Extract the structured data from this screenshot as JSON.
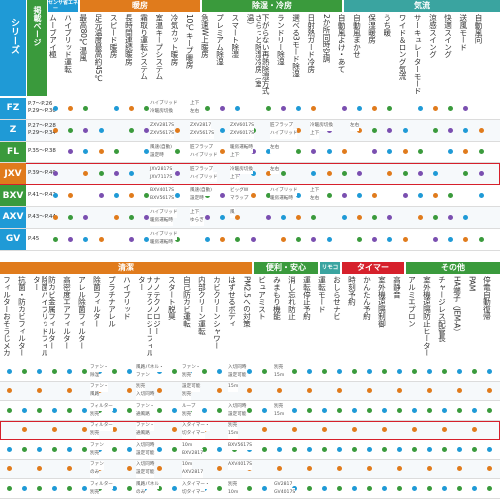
{
  "top": {
    "series_header": "シリーズ",
    "page_header": "掲載ページ",
    "categories": [
      {
        "label": "センサー",
        "color": "#1f9ad6"
      },
      {
        "label": "省エネ",
        "color": "#1f9ad6"
      },
      {
        "label": "暖房",
        "color": "#e07b1c"
      },
      {
        "label": "除湿・冷房",
        "color": "#3a9a3c"
      },
      {
        "label": "気流",
        "color": "#3aa4a0"
      }
    ],
    "columns": [
      "ムーブアイ極",
      "ハイブリッド運転",
      "最高80℃温風",
      "足元温度最高約45℃",
      "スピード暖房",
      "長時間連続暖房",
      "霜取り運転システム",
      "室温キープシステム",
      "冷気カット暖房",
      "10℃キープ暖房",
      "急速W上暖房",
      "プレミアム除湿",
      "スマート除湿",
      "さらっと除湿冷房（室温）",
      "下がらない再熱除湿方式",
      "ランドリー除湿",
      "選べる3モード除湿",
      "日射熱ガード冷房",
      "2か所同時空調",
      "自動風よけ・あて",
      "自動風まかせ",
      "保湿暖房",
      "うち暖",
      "ワイド＆ロング気流",
      "サーキュレーターモード",
      "涼感スイング",
      "快適スイング",
      "送風モード",
      "自動風向"
    ],
    "rows": [
      {
        "name": "FZ",
        "pages": [
          "P.7〜P.26",
          "P.29〜P.30"
        ],
        "color": "#1f9ad6",
        "highlight": false,
        "notes": [
          {
            "text": "ハイブリッド"
          },
          {
            "text": "冷暖房切換"
          },
          {
            "text": "上下"
          },
          {
            "text": "左右"
          }
        ]
      },
      {
        "name": "Z",
        "pages": [
          "P.27〜P.28",
          "P.29〜P.34"
        ],
        "color": "#1f9ad6",
        "highlight": false,
        "notes": [
          {
            "text": "ZXV2817S"
          },
          {
            "text": "ZXV5617S"
          },
          {
            "text": "ZXV2817"
          },
          {
            "text": "ZXV5617S"
          },
          {
            "text": "ZXV6017S"
          },
          {
            "text": "ZXV6017S"
          },
          {
            "text": "匠フラップ"
          },
          {
            "text": "ハイブリッド"
          },
          {
            "text": "冷暖房切換"
          },
          {
            "text": "上下"
          },
          {
            "text": "左右"
          }
        ]
      },
      {
        "name": "FL",
        "pages": [
          "P.35〜P.38"
        ],
        "color": "#3a9a3c",
        "highlight": false,
        "notes": [
          {
            "text": "風速(自動)"
          },
          {
            "text": "設定時"
          },
          {
            "text": "匠フラップ"
          },
          {
            "text": "ハイブリッド"
          },
          {
            "text": "暖房運転時"
          },
          {
            "text": "上下"
          },
          {
            "text": "左右"
          }
        ]
      },
      {
        "name": "JXV",
        "pages": [
          "P.39〜P.40"
        ],
        "color": "#e07b1c",
        "highlight": true,
        "notes": [
          {
            "text": "JXV2817S"
          },
          {
            "text": "JXV7117S"
          },
          {
            "text": "匠フラップ"
          },
          {
            "text": "ハイブリッド"
          },
          {
            "text": "冷暖房切換"
          },
          {
            "text": "上下"
          },
          {
            "text": "左右"
          }
        ]
      },
      {
        "name": "BXV",
        "pages": [
          "P.41〜P.42"
        ],
        "color": "#3a9a3c",
        "highlight": false,
        "notes": [
          {
            "text": "BXV4017S"
          },
          {
            "text": "BXV5617S"
          },
          {
            "text": "風速(自動)"
          },
          {
            "text": "設定時"
          },
          {
            "text": "ビッグW"
          },
          {
            "text": "マラップ"
          },
          {
            "text": "ハイブリッド"
          },
          {
            "text": "暖房運転時"
          },
          {
            "text": "上下"
          },
          {
            "text": "左右"
          }
        ]
      },
      {
        "name": "AXV",
        "pages": [
          "P.43〜P.44"
        ],
        "color": "#1f9ad6",
        "highlight": false,
        "notes": [
          {
            "text": "ハイブリッド"
          },
          {
            "text": "暖房運転時"
          },
          {
            "text": "上下"
          },
          {
            "text": "ゆらぎ"
          },
          {
            "text": "風"
          }
        ]
      },
      {
        "name": "GV",
        "pages": [
          "P.45"
        ],
        "color": "#1f9ad6",
        "highlight": false,
        "notes": [
          {
            "text": "ハイブリッド"
          },
          {
            "text": "暖房運転時"
          }
        ]
      }
    ]
  },
  "bottom": {
    "categories": [
      {
        "label": "清潔",
        "color": "#e07b1c"
      },
      {
        "label": "便利・安心",
        "color": "#3a9a3c"
      },
      {
        "label": "リモコン",
        "color": "#3aa4a0"
      },
      {
        "label": "タイマー",
        "color": "#d6202b"
      },
      {
        "label": "その他",
        "color": "#3a9a3c"
      }
    ],
    "columns": [
      "フィルターおそうじメカ",
      "抗菌・防カビフィルター",
      "除菌ハイブリッドフィルター",
      "防カビ金属フィルター",
      "高密度エアフィルター",
      "アレル除菌フィルター",
      "除菌フィルター",
      "プラチナアレル",
      "ハイブリッド",
      "ナノテクノロジーフィルター",
      "ナノテクノロジー",
      "スタート脱臭",
      "自己防カビ運転",
      "内部クリーン運転",
      "カビクリーンシャワー",
      "はずせるボディ",
      "PM2.5への対策",
      "ピュアミスト",
      "みまもり機能",
      "消し忘れ防止",
      "運転停止予約",
      "運転モード",
      "おしらせナビ",
      "時刻予約",
      "かんたん予約",
      "室外機遠隔制御",
      "高静音",
      "アルミエプロン",
      "室外機遠隔防止ヒーター",
      "チャージレス配管長",
      "HA端子（JEM-A）",
      "PAM",
      "停電自動復帰"
    ],
    "rows": [
      {
        "highlight": false,
        "notes": [
          {
            "text": "ファン・"
          },
          {
            "text": "除湿"
          },
          {
            "text": "風路パネル・"
          },
          {
            "text": "ファン"
          },
          {
            "text": "ファン・"
          },
          {
            "text": "別売"
          },
          {
            "text": "入切同時"
          },
          {
            "text": "設定可能"
          },
          {
            "text": "別売"
          },
          {
            "text": "15m"
          }
        ]
      },
      {
        "highlight": false,
        "notes": [
          {
            "text": "ファン・"
          },
          {
            "text": "風路"
          },
          {
            "text": "別売"
          },
          {
            "text": "入切同時"
          },
          {
            "text": "設定可能"
          },
          {
            "text": "別売"
          },
          {
            "text": "15m"
          }
        ]
      },
      {
        "highlight": false,
        "notes": [
          {
            "text": "フィルター"
          },
          {
            "text": "別売"
          },
          {
            "text": "ファン・"
          },
          {
            "text": "通風路"
          },
          {
            "text": "ルーブ"
          },
          {
            "text": "別売"
          },
          {
            "text": "入切同時"
          },
          {
            "text": "設定可能"
          },
          {
            "text": "別売"
          },
          {
            "text": "15m"
          }
        ]
      },
      {
        "highlight": true,
        "notes": [
          {
            "text": "フィルター"
          },
          {
            "text": "別売"
          },
          {
            "text": "ファン・"
          },
          {
            "text": "通風路"
          },
          {
            "text": "入タイマー・"
          },
          {
            "text": "切タイマー"
          },
          {
            "text": "別売"
          },
          {
            "text": "15m"
          }
        ]
      },
      {
        "highlight": false,
        "notes": [
          {
            "text": "ファン"
          },
          {
            "text": "別売"
          },
          {
            "text": "入切同時"
          },
          {
            "text": "設定可能"
          },
          {
            "text": "10m"
          },
          {
            "text": "BXV2817"
          },
          {
            "text": "BXV5617S"
          }
        ]
      },
      {
        "highlight": false,
        "notes": [
          {
            "text": "ファン"
          },
          {
            "text": "のみ"
          },
          {
            "text": "入切同時"
          },
          {
            "text": "設定可能"
          },
          {
            "text": "10m"
          },
          {
            "text": "AXV2817"
          },
          {
            "text": "AXV4017S"
          }
        ]
      },
      {
        "highlight": false,
        "notes": [
          {
            "text": "フィルター"
          },
          {
            "text": "別売"
          },
          {
            "text": "風路パネル"
          },
          {
            "text": "のみ"
          },
          {
            "text": "入タイマー・"
          },
          {
            "text": "切タイマー"
          },
          {
            "text": "別売"
          },
          {
            "text": "10m"
          },
          {
            "text": "GV2817"
          },
          {
            "text": "GV4017S"
          }
        ]
      }
    ]
  }
}
